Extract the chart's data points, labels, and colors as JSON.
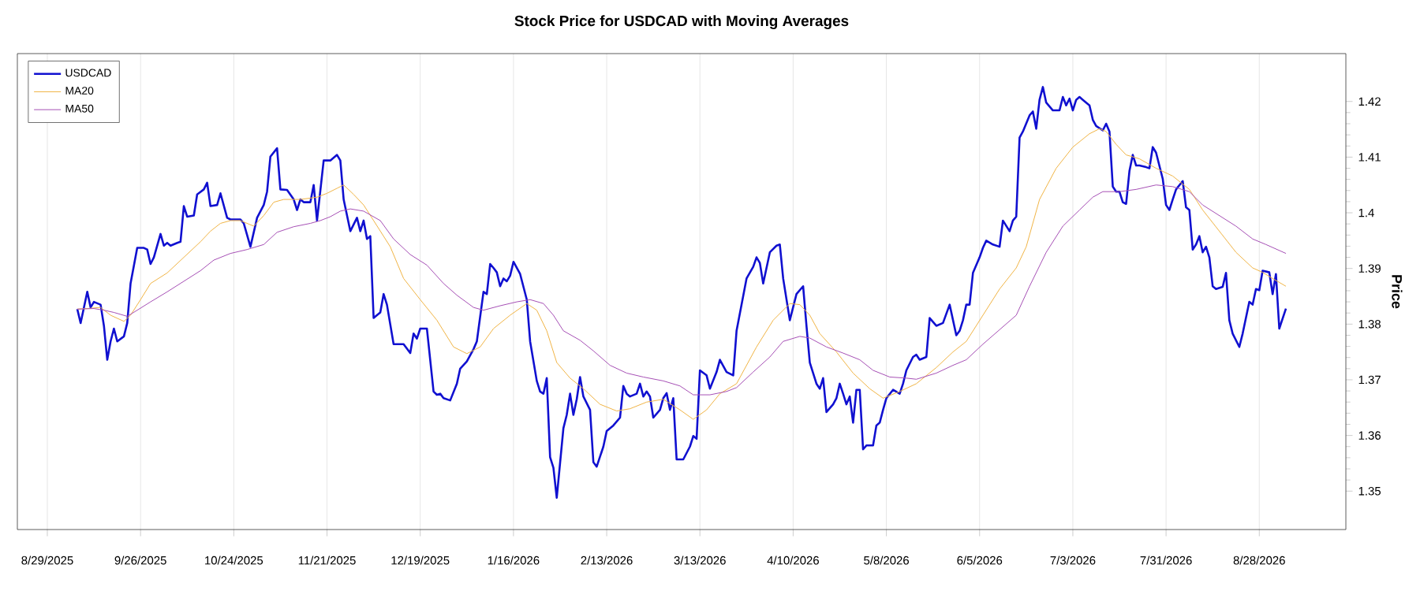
{
  "chart_data": {
    "type": "line",
    "title": "Stock Price for USDCAD with Moving Averages",
    "ylabel": "Price",
    "xlim": [
      "2025-08-20",
      "2026-09-23"
    ],
    "ylim": [
      1.3431,
      1.4286
    ],
    "xticks": [
      {
        "value": "2025-08-29",
        "label": "8/29/2025"
      },
      {
        "value": "2025-09-26",
        "label": "9/26/2025"
      },
      {
        "value": "2025-10-24",
        "label": "10/24/2025"
      },
      {
        "value": "2025-11-21",
        "label": "11/21/2025"
      },
      {
        "value": "2025-12-19",
        "label": "12/19/2025"
      },
      {
        "value": "2026-01-16",
        "label": "1/16/2026"
      },
      {
        "value": "2026-02-13",
        "label": "2/13/2026"
      },
      {
        "value": "2026-03-13",
        "label": "3/13/2026"
      },
      {
        "value": "2026-04-10",
        "label": "4/10/2026"
      },
      {
        "value": "2026-05-08",
        "label": "5/8/2026"
      },
      {
        "value": "2026-06-05",
        "label": "6/5/2026"
      },
      {
        "value": "2026-07-03",
        "label": "7/3/2026"
      },
      {
        "value": "2026-07-31",
        "label": "7/31/2026"
      },
      {
        "value": "2026-08-28",
        "label": "8/28/2026"
      }
    ],
    "yticks": [
      1.35,
      1.36,
      1.37,
      1.38,
      1.39,
      1.4,
      1.41,
      1.42
    ],
    "grid": "x",
    "legend": "top left",
    "marker": "none",
    "line_style": "solid",
    "series": [
      {
        "name": "USDCAD",
        "color": "#1010d0",
        "x": [
          "2025-09-07",
          "2025-09-08",
          "2025-09-10",
          "2025-09-11",
          "2025-09-12",
          "2025-09-14",
          "2025-09-15",
          "2025-09-16",
          "2025-09-17",
          "2025-09-18",
          "2025-09-19",
          "2025-09-21",
          "2025-09-22",
          "2025-09-23",
          "2025-09-25",
          "2025-09-27",
          "2025-09-28",
          "2025-09-29",
          "2025-09-30",
          "2025-10-02",
          "2025-10-03",
          "2025-10-04",
          "2025-10-05",
          "2025-10-07",
          "2025-10-08",
          "2025-10-09",
          "2025-10-10",
          "2025-10-12",
          "2025-10-13",
          "2025-10-15",
          "2025-10-16",
          "2025-10-17",
          "2025-10-19",
          "2025-10-20",
          "2025-10-22",
          "2025-10-23",
          "2025-10-26",
          "2025-10-27",
          "2025-10-29",
          "2025-10-31",
          "2025-11-02",
          "2025-11-03",
          "2025-11-04",
          "2025-11-06",
          "2025-11-07",
          "2025-11-09",
          "2025-11-11",
          "2025-11-12",
          "2025-11-13",
          "2025-11-14",
          "2025-11-16",
          "2025-11-17",
          "2025-11-18",
          "2025-11-20",
          "2025-11-22",
          "2025-11-24",
          "2025-11-25",
          "2025-11-26",
          "2025-11-28",
          "2025-11-30",
          "2025-12-01",
          "2025-12-02",
          "2025-12-03",
          "2025-12-04",
          "2025-12-05",
          "2025-12-07",
          "2025-12-08",
          "2025-12-09",
          "2025-12-11",
          "2025-12-13",
          "2025-12-14",
          "2025-12-16",
          "2025-12-17",
          "2025-12-18",
          "2025-12-19",
          "2025-12-21",
          "2025-12-23",
          "2025-12-24",
          "2025-12-25",
          "2025-12-26",
          "2025-12-28",
          "2025-12-30",
          "2025-12-31",
          "2026-01-02",
          "2026-01-04",
          "2026-01-05",
          "2026-01-07",
          "2026-01-08",
          "2026-01-09",
          "2026-01-10",
          "2026-01-11",
          "2026-01-12",
          "2026-01-13",
          "2026-01-14",
          "2026-01-15",
          "2026-01-16",
          "2026-01-17",
          "2026-01-18",
          "2026-01-20",
          "2026-01-21",
          "2026-01-23",
          "2026-01-24",
          "2026-01-25",
          "2026-01-26",
          "2026-01-27",
          "2026-01-28",
          "2026-01-29",
          "2026-01-31",
          "2026-02-01",
          "2026-02-02",
          "2026-02-03",
          "2026-02-04",
          "2026-02-05",
          "2026-02-06",
          "2026-02-08",
          "2026-02-09",
          "2026-02-10",
          "2026-02-12",
          "2026-02-13",
          "2026-02-14",
          "2026-02-15",
          "2026-02-17",
          "2026-02-18",
          "2026-02-19",
          "2026-02-20",
          "2026-02-22",
          "2026-02-23",
          "2026-02-24",
          "2026-02-25",
          "2026-02-26",
          "2026-02-27",
          "2026-03-01",
          "2026-03-02",
          "2026-03-03",
          "2026-03-04",
          "2026-03-05",
          "2026-03-06",
          "2026-03-08",
          "2026-03-10",
          "2026-03-11",
          "2026-03-12",
          "2026-03-13",
          "2026-03-15",
          "2026-03-16",
          "2026-03-18",
          "2026-03-19",
          "2026-03-21",
          "2026-03-23",
          "2026-03-24",
          "2026-03-27",
          "2026-03-29",
          "2026-03-30",
          "2026-03-31",
          "2026-04-01",
          "2026-04-03",
          "2026-04-05",
          "2026-04-06",
          "2026-04-07",
          "2026-04-09",
          "2026-04-11",
          "2026-04-13",
          "2026-04-14",
          "2026-04-15",
          "2026-04-17",
          "2026-04-18",
          "2026-04-19",
          "2026-04-20",
          "2026-04-22",
          "2026-04-23",
          "2026-04-24",
          "2026-04-25",
          "2026-04-26",
          "2026-04-27",
          "2026-04-28",
          "2026-04-29",
          "2026-04-30",
          "2026-05-01",
          "2026-05-02",
          "2026-05-04",
          "2026-05-05",
          "2026-05-06",
          "2026-05-07",
          "2026-05-08",
          "2026-05-10",
          "2026-05-12",
          "2026-05-13",
          "2026-05-14",
          "2026-05-16",
          "2026-05-17",
          "2026-05-18",
          "2026-05-20",
          "2026-05-21",
          "2026-05-23",
          "2026-05-25",
          "2026-05-27",
          "2026-05-29",
          "2026-05-30",
          "2026-05-31",
          "2026-06-01",
          "2026-06-02",
          "2026-06-03",
          "2026-06-05",
          "2026-06-06",
          "2026-06-07",
          "2026-06-09",
          "2026-06-11",
          "2026-06-12",
          "2026-06-14",
          "2026-06-15",
          "2026-06-16",
          "2026-06-17",
          "2026-06-18",
          "2026-06-20",
          "2026-06-21",
          "2026-06-22",
          "2026-06-23",
          "2026-06-24",
          "2026-06-25",
          "2026-06-27",
          "2026-06-29",
          "2026-06-30",
          "2026-07-01",
          "2026-07-02",
          "2026-07-03",
          "2026-07-04",
          "2026-07-05",
          "2026-07-06",
          "2026-07-08",
          "2026-07-09",
          "2026-07-10",
          "2026-07-12",
          "2026-07-13",
          "2026-07-14",
          "2026-07-15",
          "2026-07-16",
          "2026-07-17",
          "2026-07-18",
          "2026-07-19",
          "2026-07-20",
          "2026-07-21",
          "2026-07-22",
          "2026-07-23",
          "2026-07-25",
          "2026-07-26",
          "2026-07-27",
          "2026-07-28",
          "2026-07-30",
          "2026-07-31",
          "2026-08-01",
          "2026-08-02",
          "2026-08-03",
          "2026-08-05",
          "2026-08-06",
          "2026-08-07",
          "2026-08-08",
          "2026-08-09",
          "2026-08-10",
          "2026-08-11",
          "2026-08-12",
          "2026-08-13",
          "2026-08-14",
          "2026-08-15",
          "2026-08-17",
          "2026-08-18",
          "2026-08-19",
          "2026-08-20",
          "2026-08-22",
          "2026-08-23",
          "2026-08-25",
          "2026-08-26",
          "2026-08-27",
          "2026-08-28",
          "2026-08-29",
          "2026-08-31",
          "2026-09-01",
          "2026-09-02",
          "2026-09-03",
          "2026-09-05"
        ],
        "values": [
          1.3827,
          1.3802,
          1.3858,
          1.383,
          1.384,
          1.3835,
          1.3797,
          1.3736,
          1.3769,
          1.3792,
          1.3769,
          1.3778,
          1.3802,
          1.3873,
          1.3937,
          1.3937,
          1.3934,
          1.3908,
          1.392,
          1.3962,
          1.3941,
          1.3946,
          1.3941,
          1.3946,
          1.3948,
          1.4012,
          1.3993,
          1.3995,
          1.4033,
          1.4042,
          1.4054,
          1.4012,
          1.4014,
          1.4035,
          1.3991,
          1.3988,
          1.3988,
          1.3981,
          1.3939,
          1.3991,
          1.4014,
          1.4038,
          1.4101,
          1.4116,
          1.4042,
          1.4041,
          1.4024,
          1.4005,
          1.4024,
          1.4019,
          1.4019,
          1.405,
          1.3986,
          1.4094,
          1.4094,
          1.4104,
          1.4094,
          1.4024,
          1.3967,
          1.3991,
          1.3967,
          1.3986,
          1.3953,
          1.3958,
          1.3811,
          1.3821,
          1.3854,
          1.3835,
          1.3764,
          1.3764,
          1.3764,
          1.3748,
          1.3783,
          1.3774,
          1.3792,
          1.3792,
          1.3679,
          1.3673,
          1.3675,
          1.3667,
          1.3663,
          1.3693,
          1.372,
          1.3733,
          1.3755,
          1.3769,
          1.3858,
          1.3854,
          1.3908,
          1.3901,
          1.3893,
          1.3868,
          1.3882,
          1.3877,
          1.3887,
          1.3912,
          1.3901,
          1.389,
          1.3844,
          1.3769,
          1.3698,
          1.3679,
          1.3675,
          1.3703,
          1.3561,
          1.3542,
          1.3488,
          1.3613,
          1.3637,
          1.3675,
          1.3637,
          1.3665,
          1.3705,
          1.367,
          1.3646,
          1.3552,
          1.3544,
          1.358,
          1.3608,
          1.3613,
          1.3618,
          1.3632,
          1.3689,
          1.3675,
          1.367,
          1.3675,
          1.3693,
          1.367,
          1.3679,
          1.367,
          1.3632,
          1.3646,
          1.3667,
          1.3676,
          1.3646,
          1.3667,
          1.3557,
          1.3557,
          1.358,
          1.3599,
          1.3594,
          1.3717,
          1.3708,
          1.3684,
          1.3714,
          1.3736,
          1.3714,
          1.3708,
          1.3788,
          1.3882,
          1.3903,
          1.392,
          1.391,
          1.3873,
          1.3929,
          1.3941,
          1.3943,
          1.3882,
          1.3807,
          1.3854,
          1.3868,
          1.3797,
          1.3731,
          1.3693,
          1.3684,
          1.3703,
          1.3642,
          1.3656,
          1.3667,
          1.3693,
          1.3675,
          1.3656,
          1.367,
          1.3623,
          1.3682,
          1.3682,
          1.3575,
          1.3582,
          1.3582,
          1.3618,
          1.3623,
          1.3646,
          1.3667,
          1.3682,
          1.3675,
          1.3693,
          1.3717,
          1.3741,
          1.3745,
          1.3736,
          1.3741,
          1.3811,
          1.3797,
          1.3802,
          1.3835,
          1.378,
          1.3788,
          1.3807,
          1.3835,
          1.3835,
          1.3892,
          1.392,
          1.3937,
          1.395,
          1.3943,
          1.3939,
          1.3986,
          1.3967,
          1.3986,
          1.3993,
          1.4135,
          1.4146,
          1.4175,
          1.4182,
          1.4151,
          1.4203,
          1.4226,
          1.4198,
          1.4184,
          1.4184,
          1.4208,
          1.4193,
          1.4205,
          1.4184,
          1.4203,
          1.4208,
          1.4203,
          1.4193,
          1.4167,
          1.4156,
          1.4148,
          1.416,
          1.4146,
          1.4047,
          1.4038,
          1.4038,
          1.4019,
          1.4016,
          1.4075,
          1.4104,
          1.4085,
          1.4085,
          1.4082,
          1.408,
          1.4118,
          1.4108,
          1.4061,
          1.4014,
          1.4005,
          1.4024,
          1.4042,
          1.4057,
          1.401,
          1.4005,
          1.3934,
          1.3943,
          1.3958,
          1.3929,
          1.3939,
          1.392,
          1.3868,
          1.3863,
          1.3867,
          1.3892,
          1.3807,
          1.3783,
          1.3759,
          1.3783,
          1.384,
          1.3835,
          1.3863,
          1.3861,
          1.3896,
          1.3893,
          1.3854,
          1.389,
          1.3792,
          1.3828
        ]
      },
      {
        "name": "MA20",
        "color": "#f0b445",
        "x": [
          "2025-09-07",
          "2025-09-10",
          "2025-09-14",
          "2025-09-17",
          "2025-09-21",
          "2025-09-23",
          "2025-09-26",
          "2025-09-29",
          "2025-10-04",
          "2025-10-09",
          "2025-10-14",
          "2025-10-17",
          "2025-10-20",
          "2025-10-23",
          "2025-10-26",
          "2025-10-30",
          "2025-11-02",
          "2025-11-05",
          "2025-11-08",
          "2025-11-13",
          "2025-11-18",
          "2025-11-21",
          "2025-11-24",
          "2025-11-26",
          "2025-11-29",
          "2025-12-02",
          "2025-12-05",
          "2025-12-10",
          "2025-12-14",
          "2025-12-19",
          "2025-12-24",
          "2025-12-29",
          "2026-01-02",
          "2026-01-06",
          "2026-01-10",
          "2026-01-15",
          "2026-01-20",
          "2026-01-23",
          "2026-01-26",
          "2026-01-29",
          "2026-02-02",
          "2026-02-06",
          "2026-02-11",
          "2026-02-16",
          "2026-02-20",
          "2026-02-25",
          "2026-03-02",
          "2026-03-07",
          "2026-03-11",
          "2026-03-15",
          "2026-03-19",
          "2026-03-24",
          "2026-03-30",
          "2026-04-04",
          "2026-04-09",
          "2026-04-12",
          "2026-04-15",
          "2026-04-18",
          "2026-04-23",
          "2026-04-28",
          "2026-05-03",
          "2026-05-07",
          "2026-05-12",
          "2026-05-17",
          "2026-05-23",
          "2026-05-28",
          "2026-06-01",
          "2026-06-06",
          "2026-06-11",
          "2026-06-16",
          "2026-06-19",
          "2026-06-23",
          "2026-06-28",
          "2026-07-03",
          "2026-07-08",
          "2026-07-11",
          "2026-07-13",
          "2026-07-16",
          "2026-07-19",
          "2026-07-23",
          "2026-07-28",
          "2026-08-02",
          "2026-08-07",
          "2026-08-11",
          "2026-08-16",
          "2026-08-21",
          "2026-08-26",
          "2026-08-29",
          "2026-09-01",
          "2026-09-05"
        ],
        "values": [
          1.3827,
          1.3828,
          1.383,
          1.3816,
          1.3805,
          1.3816,
          1.3844,
          1.3873,
          1.3892,
          1.392,
          1.3948,
          1.3967,
          1.3981,
          1.3986,
          1.3986,
          1.3976,
          1.3995,
          1.4019,
          1.4024,
          1.4024,
          1.4028,
          1.4035,
          1.4044,
          1.405,
          1.4033,
          1.4014,
          1.3986,
          1.3939,
          1.3882,
          1.3844,
          1.3807,
          1.3759,
          1.3747,
          1.3759,
          1.3792,
          1.3816,
          1.3837,
          1.3825,
          1.3788,
          1.3731,
          1.3703,
          1.3684,
          1.3656,
          1.3644,
          1.3648,
          1.366,
          1.3665,
          1.3646,
          1.3629,
          1.3646,
          1.3675,
          1.3693,
          1.3759,
          1.3807,
          1.3837,
          1.3835,
          1.3816,
          1.3783,
          1.375,
          1.3712,
          1.3684,
          1.3667,
          1.3679,
          1.3693,
          1.3722,
          1.375,
          1.3769,
          1.3816,
          1.3863,
          1.3901,
          1.3939,
          1.4024,
          1.408,
          1.4118,
          1.4142,
          1.4151,
          1.4146,
          1.4123,
          1.4104,
          1.4097,
          1.408,
          1.4066,
          1.4042,
          1.4005,
          1.3967,
          1.3929,
          1.3901,
          1.3893,
          1.3882,
          1.3868
        ]
      },
      {
        "name": "MA50",
        "color": "#a64fb5",
        "x": [
          "2025-09-07",
          "2025-09-12",
          "2025-09-15",
          "2025-09-18",
          "2025-09-22",
          "2025-09-25",
          "2025-09-29",
          "2025-10-04",
          "2025-10-09",
          "2025-10-14",
          "2025-10-18",
          "2025-10-23",
          "2025-10-28",
          "2025-11-02",
          "2025-11-06",
          "2025-11-11",
          "2025-11-16",
          "2025-11-19",
          "2025-11-22",
          "2025-11-25",
          "2025-11-28",
          "2025-12-02",
          "2025-12-07",
          "2025-12-11",
          "2025-12-16",
          "2025-12-21",
          "2025-12-26",
          "2025-12-30",
          "2026-01-04",
          "2026-01-07",
          "2026-01-12",
          "2026-01-17",
          "2026-01-21",
          "2026-01-25",
          "2026-01-28",
          "2026-01-31",
          "2026-02-05",
          "2026-02-09",
          "2026-02-14",
          "2026-02-19",
          "2026-02-24",
          "2026-03-02",
          "2026-03-07",
          "2026-03-11",
          "2026-03-16",
          "2026-03-21",
          "2026-03-24",
          "2026-03-29",
          "2026-04-03",
          "2026-04-07",
          "2026-04-12",
          "2026-04-15",
          "2026-04-20",
          "2026-04-25",
          "2026-04-30",
          "2026-05-04",
          "2026-05-09",
          "2026-05-14",
          "2026-05-17",
          "2026-05-23",
          "2026-05-28",
          "2026-06-01",
          "2026-06-06",
          "2026-06-11",
          "2026-06-16",
          "2026-06-20",
          "2026-06-25",
          "2026-06-30",
          "2026-07-05",
          "2026-07-09",
          "2026-07-12",
          "2026-07-17",
          "2026-07-22",
          "2026-07-28",
          "2026-08-02",
          "2026-08-07",
          "2026-08-11",
          "2026-08-16",
          "2026-08-21",
          "2026-08-26",
          "2026-08-30",
          "2026-09-05"
        ],
        "values": [
          1.3827,
          1.3828,
          1.3825,
          1.3821,
          1.3814,
          1.3825,
          1.384,
          1.3858,
          1.3877,
          1.3896,
          1.3915,
          1.3927,
          1.3934,
          1.3943,
          1.3965,
          1.3975,
          1.3981,
          1.3986,
          1.3993,
          1.4003,
          1.4007,
          1.4003,
          1.3986,
          1.3953,
          1.3925,
          1.3906,
          1.3873,
          1.3852,
          1.383,
          1.3825,
          1.3833,
          1.384,
          1.3844,
          1.3837,
          1.3816,
          1.3788,
          1.3771,
          1.3752,
          1.3726,
          1.3712,
          1.3705,
          1.3698,
          1.3689,
          1.3673,
          1.3673,
          1.3679,
          1.3686,
          1.3714,
          1.3741,
          1.3769,
          1.3778,
          1.3775,
          1.3759,
          1.3748,
          1.3736,
          1.3717,
          1.3705,
          1.3703,
          1.3701,
          1.3712,
          1.3726,
          1.3736,
          1.3764,
          1.379,
          1.3816,
          1.3868,
          1.3929,
          1.3976,
          1.4005,
          1.4028,
          1.4038,
          1.4038,
          1.4042,
          1.405,
          1.4047,
          1.4038,
          1.4014,
          1.3995,
          1.3976,
          1.3953,
          1.3943,
          1.3927
        ]
      }
    ]
  }
}
